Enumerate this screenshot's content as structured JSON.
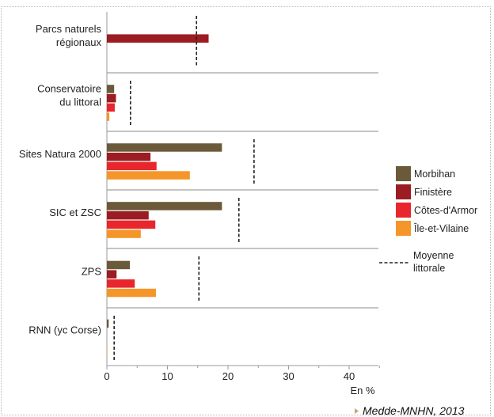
{
  "chart_data": {
    "type": "bar",
    "orientation": "horizontal",
    "categories": [
      [
        "Parcs naturels",
        "régionaux"
      ],
      [
        "Conservatoire",
        "du littoral"
      ],
      [
        "Sites Natura 2000"
      ],
      [
        "SIC et ZSC"
      ],
      [
        "ZPS"
      ],
      [
        "RNN (yc Corse)"
      ]
    ],
    "series": [
      {
        "name": "Morbihan",
        "color": "#6b5a3a",
        "values": [
          null,
          1.2,
          19,
          19,
          3.8,
          0.3
        ]
      },
      {
        "name": "Finistère",
        "color": "#9b1c22",
        "values": [
          16.8,
          1.5,
          7.2,
          6.9,
          1.6,
          null
        ]
      },
      {
        "name": "Côtes-d'Armor",
        "color": "#e8262d",
        "values": [
          null,
          1.3,
          8.2,
          8.0,
          4.6,
          null
        ]
      },
      {
        "name": "Île-et-Vilaine",
        "color": "#f5962a",
        "values": [
          null,
          0.4,
          13.7,
          5.6,
          8.1,
          0.05
        ]
      }
    ],
    "reference": {
      "name": "Moyenne\nlittorale",
      "values": [
        14.8,
        3.9,
        24.3,
        21.8,
        15.2,
        1.2
      ]
    },
    "xlabel": "En %",
    "xlim": [
      0,
      45
    ],
    "xticks": [
      0,
      10,
      20,
      30,
      40
    ],
    "legend_position": "right",
    "grid": false
  },
  "source": "Medde-MNHN, 2013"
}
